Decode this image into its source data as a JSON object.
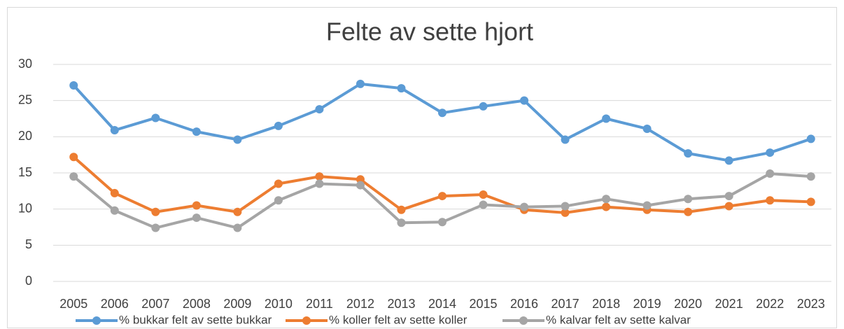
{
  "chart_data": {
    "type": "line",
    "title": "Felte av sette hjort",
    "categories": [
      "2005",
      "2006",
      "2007",
      "2008",
      "2009",
      "2010",
      "2011",
      "2012",
      "2013",
      "2014",
      "2015",
      "2016",
      "2017",
      "2018",
      "2019",
      "2020",
      "2021",
      "2022",
      "2023"
    ],
    "series": [
      {
        "name": "% bukkar felt av sette bukkar",
        "color": "#5b9bd5",
        "values": [
          27.1,
          20.9,
          22.6,
          20.7,
          19.6,
          21.5,
          23.8,
          27.3,
          26.7,
          23.3,
          24.2,
          25.0,
          19.6,
          22.5,
          21.1,
          17.7,
          16.7,
          17.8,
          19.7
        ]
      },
      {
        "name": "% koller felt av sette koller",
        "color": "#ed7d31",
        "values": [
          17.2,
          12.2,
          9.6,
          10.5,
          9.6,
          13.5,
          14.5,
          14.1,
          9.9,
          11.8,
          12.0,
          9.9,
          9.5,
          10.3,
          9.9,
          9.6,
          10.4,
          11.2,
          11.0
        ]
      },
      {
        "name": "% kalvar felt av sette kalvar",
        "color": "#a5a5a5",
        "values": [
          14.5,
          9.8,
          7.4,
          8.8,
          7.4,
          11.2,
          13.5,
          13.3,
          8.1,
          8.2,
          10.6,
          10.3,
          10.4,
          11.4,
          10.5,
          11.4,
          11.8,
          14.9,
          14.5
        ]
      }
    ],
    "ylim": [
      0,
      30
    ],
    "yticks": [
      0,
      5,
      10,
      15,
      20,
      25,
      30
    ],
    "grid": true,
    "legend": "bottom"
  }
}
